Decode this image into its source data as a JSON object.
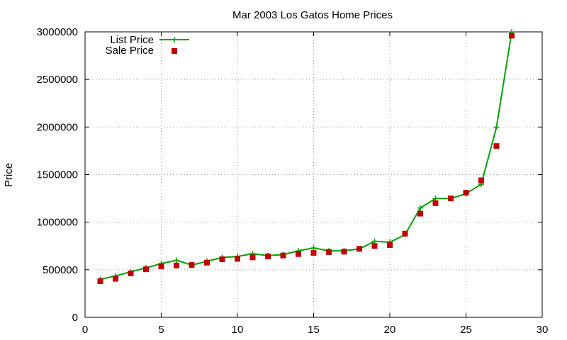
{
  "chart_data": {
    "type": "line",
    "title": "Mar 2003 Los Gatos Home Prices",
    "xlabel": "",
    "ylabel": "Price",
    "xlim": [
      0,
      30
    ],
    "ylim": [
      0,
      3000000
    ],
    "xticks": [
      0,
      5,
      10,
      15,
      20,
      25,
      30
    ],
    "yticks": [
      0,
      500000,
      1000000,
      1500000,
      2000000,
      2500000,
      3000000
    ],
    "grid": true,
    "legend_position": "top-left",
    "series": [
      {
        "name": "List Price",
        "style": "line+cross",
        "color": "#00a000",
        "x": [
          1,
          2,
          3,
          4,
          5,
          6,
          7,
          8,
          9,
          10,
          11,
          12,
          13,
          14,
          15,
          16,
          17,
          18,
          19,
          20,
          21,
          22,
          23,
          24,
          25,
          26,
          27,
          28
        ],
        "values": [
          399000,
          435000,
          479000,
          519000,
          565000,
          599000,
          549000,
          589000,
          629000,
          639000,
          669000,
          649000,
          659000,
          699000,
          729000,
          699000,
          699000,
          719000,
          799000,
          789000,
          869000,
          1149000,
          1249000,
          1249000,
          1299000,
          1399000,
          1999000,
          2999000
        ]
      },
      {
        "name": "Sale Price",
        "style": "square",
        "color": "#c00000",
        "x": [
          1,
          2,
          3,
          4,
          5,
          6,
          7,
          8,
          9,
          10,
          11,
          12,
          13,
          14,
          15,
          16,
          17,
          18,
          19,
          20,
          21,
          22,
          23,
          24,
          25,
          26,
          27,
          28
        ],
        "values": [
          380000,
          405000,
          462000,
          505000,
          535000,
          545000,
          550000,
          575000,
          610000,
          615000,
          630000,
          640000,
          650000,
          665000,
          678000,
          686000,
          690000,
          720000,
          750000,
          760000,
          880000,
          1090000,
          1200000,
          1250000,
          1310000,
          1440000,
          1800000,
          2960000
        ]
      }
    ]
  }
}
